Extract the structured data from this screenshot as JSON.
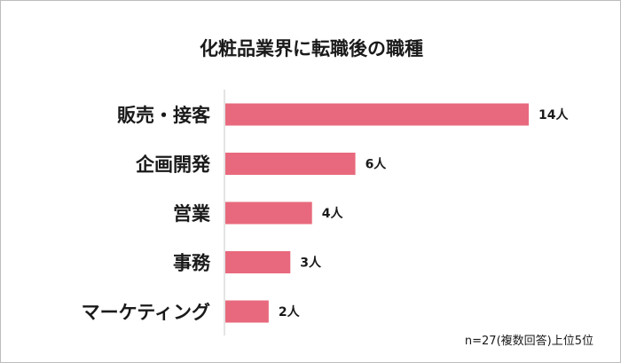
{
  "chart_data": {
    "type": "bar",
    "orientation": "horizontal",
    "title": "化粧品業界に転職後の職種",
    "categories": [
      "販売・接客",
      "企画開発",
      "営業",
      "事務",
      "マーケティング"
    ],
    "values": [
      14,
      6,
      4,
      3,
      2
    ],
    "data_labels": [
      "14人",
      "6人",
      "4人",
      "3人",
      "2人"
    ],
    "unit": "人",
    "note": "n=27(複数回答)上位5位",
    "xlim": [
      0,
      14
    ],
    "grid": false,
    "bar_color": "#E8697D",
    "axis_color": "#C8C8C8"
  }
}
